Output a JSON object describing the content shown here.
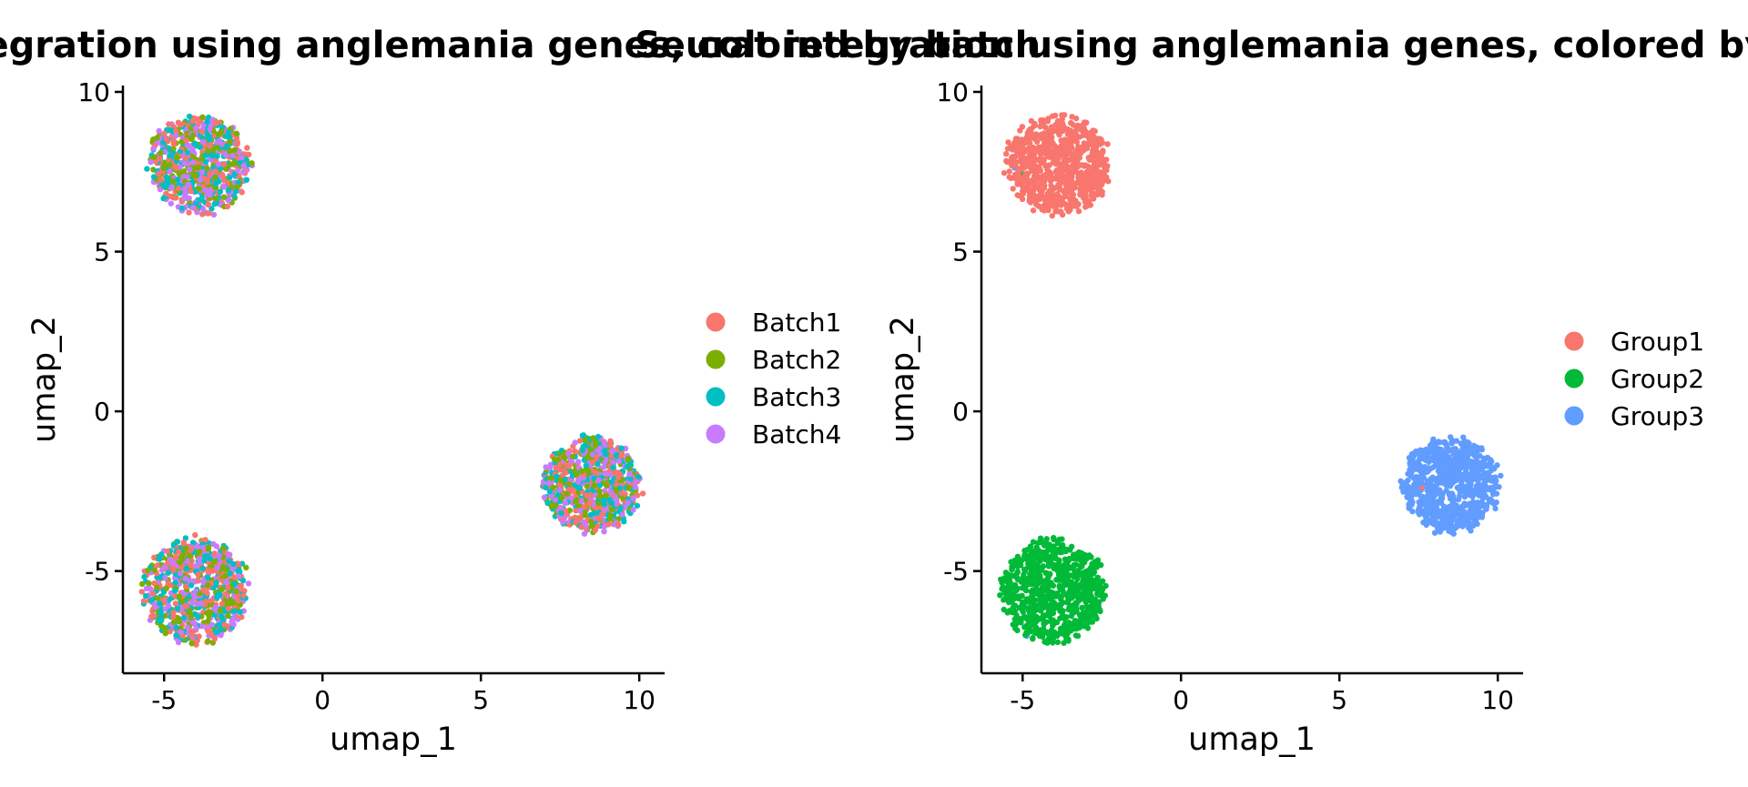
{
  "chart_data": [
    {
      "type": "scatter",
      "title": "Seurat integration using anglemania genes, colored by batch",
      "xlabel": "umap_1",
      "ylabel": "umap_2",
      "xlim": [
        -6.3,
        10.8
      ],
      "ylim": [
        -8.2,
        10.2
      ],
      "xticks": [
        "-5",
        "0",
        "5",
        "10"
      ],
      "yticks": [
        "-5",
        "0",
        "5",
        "10"
      ],
      "grid": false,
      "legend_position": "right",
      "series": [
        {
          "name": "Batch1",
          "color": "#F8766D"
        },
        {
          "name": "Batch2",
          "color": "#7CAE00"
        },
        {
          "name": "Batch3",
          "color": "#00BFC4"
        },
        {
          "name": "Batch4",
          "color": "#C77CFF"
        }
      ],
      "clusters": [
        {
          "center": [
            -3.9,
            7.7
          ],
          "radius": [
            1.65,
            1.55
          ]
        },
        {
          "center": [
            -4.0,
            -5.6
          ],
          "radius": [
            1.7,
            1.65
          ]
        },
        {
          "center": [
            8.5,
            -2.3
          ],
          "radius": [
            1.55,
            1.5
          ]
        }
      ]
    },
    {
      "type": "scatter",
      "title": "Seurat integration using anglemania genes, colored by group",
      "xlabel": "umap_1",
      "ylabel": "umap_2",
      "xlim": [
        -6.3,
        10.8
      ],
      "ylim": [
        -8.2,
        10.2
      ],
      "xticks": [
        "-5",
        "0",
        "5",
        "10"
      ],
      "yticks": [
        "-5",
        "0",
        "5",
        "10"
      ],
      "grid": false,
      "legend_position": "right",
      "series": [
        {
          "name": "Group1",
          "color": "#F8766D"
        },
        {
          "name": "Group2",
          "color": "#00BA38"
        },
        {
          "name": "Group3",
          "color": "#619CFF"
        }
      ],
      "clusters": [
        {
          "center": [
            -3.9,
            7.7
          ],
          "radius": [
            1.65,
            1.55
          ],
          "group": 0
        },
        {
          "center": [
            -4.0,
            -5.6
          ],
          "radius": [
            1.7,
            1.65
          ],
          "group": 1
        },
        {
          "center": [
            8.5,
            -2.3
          ],
          "radius": [
            1.55,
            1.5
          ],
          "group": 2
        }
      ]
    }
  ]
}
